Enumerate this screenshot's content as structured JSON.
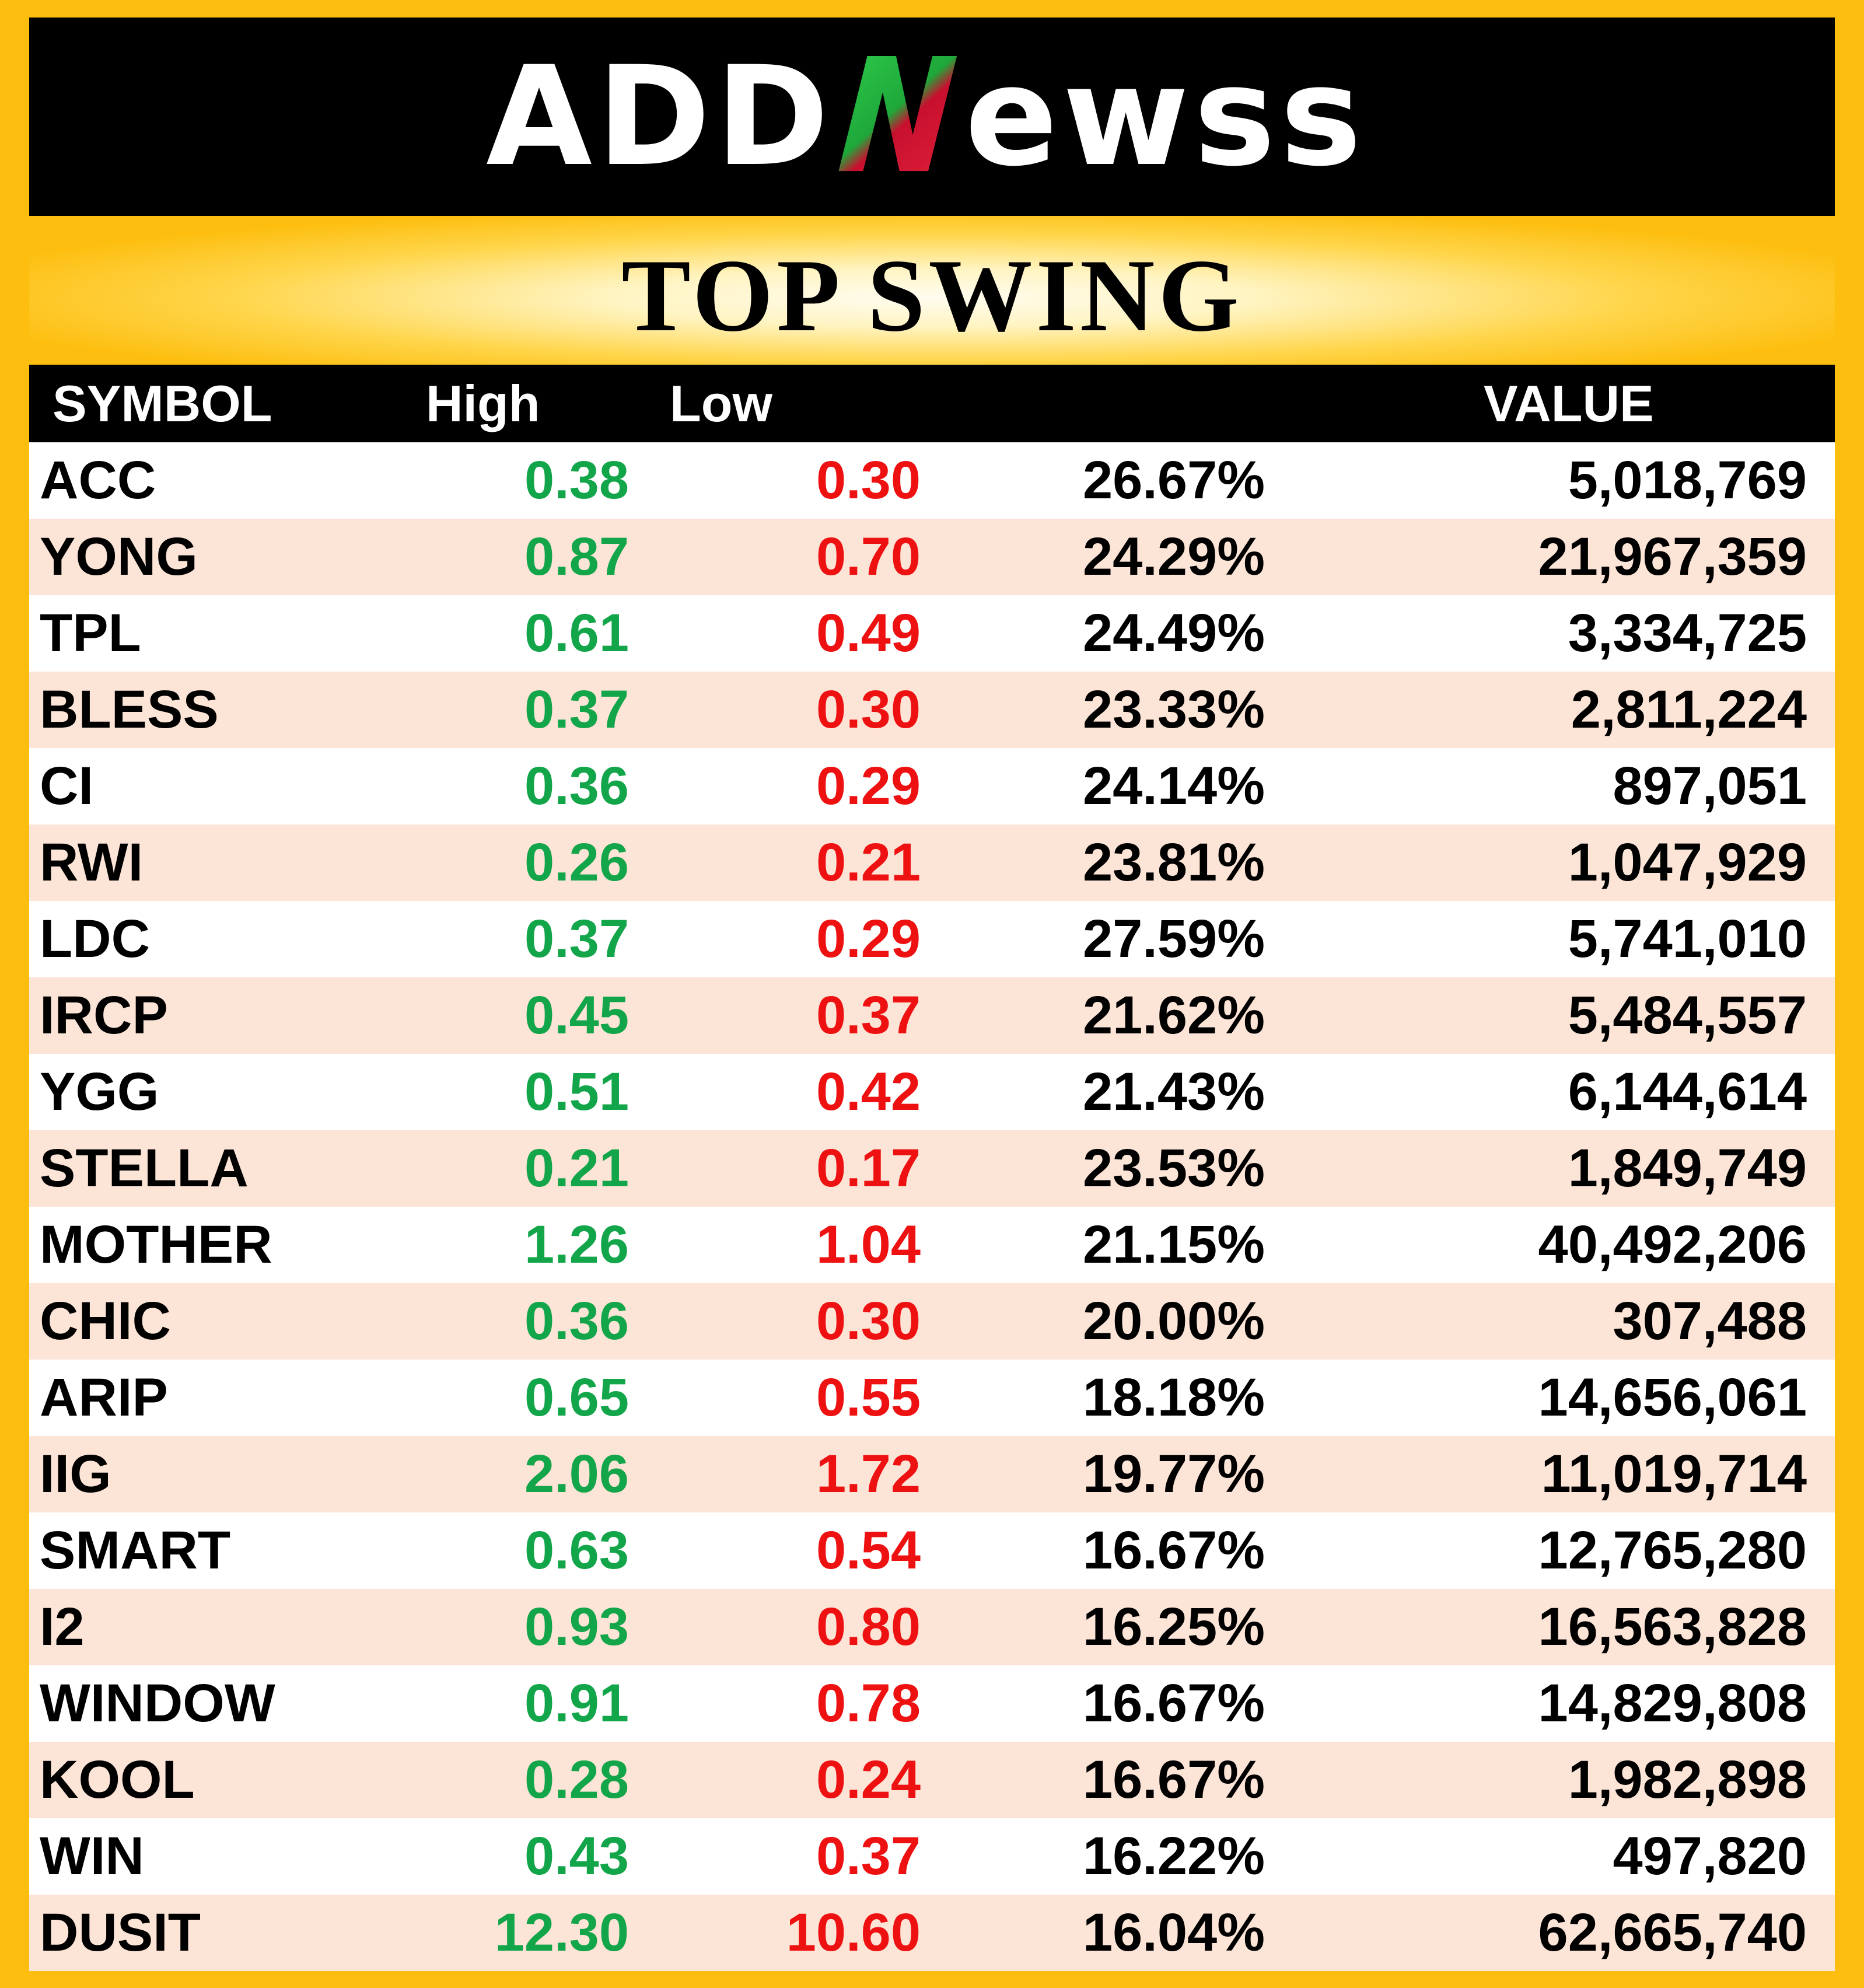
{
  "brand": {
    "pre": "ADD",
    "mark": "N",
    "post": "ewss"
  },
  "title": "TOP SWING",
  "headers": {
    "symbol": "SYMBOL",
    "high": "High",
    "low": "Low",
    "pct": "",
    "value": "VALUE"
  },
  "colors": {
    "background": "#FDBE0F",
    "high": "#12A54A",
    "low": "#EE1111",
    "row_alt": "#FCE4D6"
  },
  "rows": [
    {
      "symbol": "ACC",
      "high": "0.38",
      "low": "0.30",
      "pct": "26.67%",
      "value": "5,018,769"
    },
    {
      "symbol": "YONG",
      "high": "0.87",
      "low": "0.70",
      "pct": "24.29%",
      "value": "21,967,359"
    },
    {
      "symbol": "TPL",
      "high": "0.61",
      "low": "0.49",
      "pct": "24.49%",
      "value": "3,334,725"
    },
    {
      "symbol": "BLESS",
      "high": "0.37",
      "low": "0.30",
      "pct": "23.33%",
      "value": "2,811,224"
    },
    {
      "symbol": "CI",
      "high": "0.36",
      "low": "0.29",
      "pct": "24.14%",
      "value": "897,051"
    },
    {
      "symbol": "RWI",
      "high": "0.26",
      "low": "0.21",
      "pct": "23.81%",
      "value": "1,047,929"
    },
    {
      "symbol": "LDC",
      "high": "0.37",
      "low": "0.29",
      "pct": "27.59%",
      "value": "5,741,010"
    },
    {
      "symbol": "IRCP",
      "high": "0.45",
      "low": "0.37",
      "pct": "21.62%",
      "value": "5,484,557"
    },
    {
      "symbol": "YGG",
      "high": "0.51",
      "low": "0.42",
      "pct": "21.43%",
      "value": "6,144,614"
    },
    {
      "symbol": "STELLA",
      "high": "0.21",
      "low": "0.17",
      "pct": "23.53%",
      "value": "1,849,749"
    },
    {
      "symbol": "MOTHER",
      "high": "1.26",
      "low": "1.04",
      "pct": "21.15%",
      "value": "40,492,206"
    },
    {
      "symbol": "CHIC",
      "high": "0.36",
      "low": "0.30",
      "pct": "20.00%",
      "value": "307,488"
    },
    {
      "symbol": "ARIP",
      "high": "0.65",
      "low": "0.55",
      "pct": "18.18%",
      "value": "14,656,061"
    },
    {
      "symbol": "IIG",
      "high": "2.06",
      "low": "1.72",
      "pct": "19.77%",
      "value": "11,019,714"
    },
    {
      "symbol": "SMART",
      "high": "0.63",
      "low": "0.54",
      "pct": "16.67%",
      "value": "12,765,280"
    },
    {
      "symbol": "I2",
      "high": "0.93",
      "low": "0.80",
      "pct": "16.25%",
      "value": "16,563,828"
    },
    {
      "symbol": "WINDOW",
      "high": "0.91",
      "low": "0.78",
      "pct": "16.67%",
      "value": "14,829,808"
    },
    {
      "symbol": "KOOL",
      "high": "0.28",
      "low": "0.24",
      "pct": "16.67%",
      "value": "1,982,898"
    },
    {
      "symbol": "WIN",
      "high": "0.43",
      "low": "0.37",
      "pct": "16.22%",
      "value": "497,820"
    },
    {
      "symbol": "DUSIT",
      "high": "12.30",
      "low": "10.60",
      "pct": "16.04%",
      "value": "62,665,740"
    }
  ]
}
